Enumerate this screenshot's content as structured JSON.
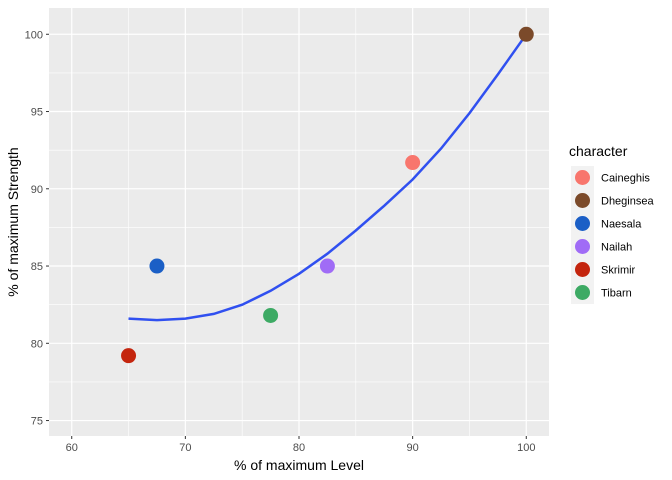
{
  "chart_data": {
    "type": "scatter",
    "xlabel": "% of maximum Level",
    "ylabel": "% of maximum Strength",
    "xlim": [
      58,
      102
    ],
    "ylim": [
      74,
      101.7
    ],
    "x_ticks": [
      60,
      70,
      80,
      90,
      100
    ],
    "y_ticks": [
      75,
      80,
      85,
      90,
      95,
      100
    ],
    "grid": true,
    "legend": {
      "title": "character",
      "position": "right"
    },
    "points": [
      {
        "character": "Caineghis",
        "x": 90,
        "y": 91.7,
        "color": "#F8766D"
      },
      {
        "character": "Dheginsea",
        "x": 100,
        "y": 100,
        "color": "#7B4A2A"
      },
      {
        "character": "Naesala",
        "x": 67.5,
        "y": 85,
        "color": "#1B5FC6"
      },
      {
        "character": "Nailah",
        "x": 82.5,
        "y": 85,
        "color": "#A06CF6"
      },
      {
        "character": "Skrimir",
        "x": 65,
        "y": 79.2,
        "color": "#C4250E"
      },
      {
        "character": "Tibarn",
        "x": 77.5,
        "y": 81.8,
        "color": "#3DAA64"
      }
    ],
    "fit_line": {
      "color": "#3050F0",
      "x": [
        65,
        67.5,
        70,
        72.5,
        75,
        77.5,
        80,
        82.5,
        85,
        87.5,
        90,
        92.5,
        95,
        97.5,
        100
      ],
      "y": [
        81.6,
        81.5,
        81.6,
        81.9,
        82.5,
        83.4,
        84.5,
        85.8,
        87.3,
        88.9,
        90.6,
        92.6,
        94.9,
        97.4,
        100
      ]
    }
  }
}
